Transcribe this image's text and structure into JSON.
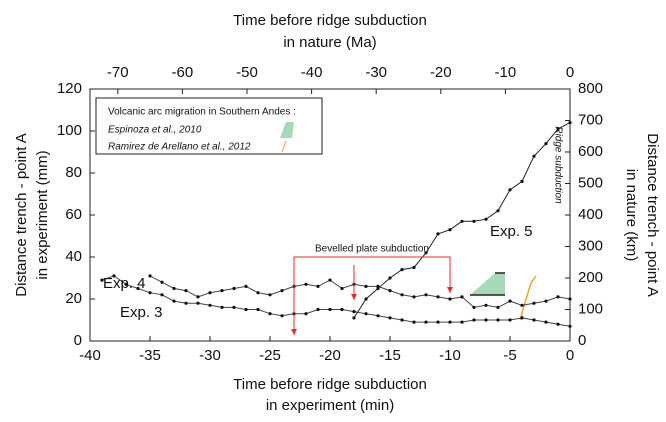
{
  "chart_data": {
    "type": "line",
    "x_label": [
      "Time before ridge subduction",
      "in experiment (min)"
    ],
    "x2_label": [
      "Time before ridge subduction",
      "in nature (Ma)"
    ],
    "y_label": [
      "Distance trench - point A",
      "in experiment (mm)"
    ],
    "y2_label": [
      "Distance trench - point A",
      "in nature (km)"
    ],
    "xlim": [
      -40,
      0
    ],
    "xticks": [
      -40,
      -35,
      -30,
      -25,
      -20,
      -15,
      -10,
      -5,
      0
    ],
    "x2lim": [
      -74.3,
      0
    ],
    "x2ticks": [
      -70,
      -60,
      -50,
      -40,
      -30,
      -20,
      -10,
      0
    ],
    "ylim": [
      0,
      120
    ],
    "yticks": [
      0,
      20,
      40,
      60,
      80,
      100,
      120
    ],
    "y2lim": [
      0,
      800
    ],
    "y2ticks": [
      0,
      100,
      200,
      300,
      400,
      500,
      600,
      700,
      800
    ],
    "series": [
      {
        "name": "Exp. 4",
        "color": "#444444",
        "x": [
          -35,
          -34,
          -33,
          -32,
          -31,
          -30,
          -29,
          -28,
          -27,
          -26,
          -25,
          -24,
          -23,
          -22,
          -21,
          -20,
          -19,
          -18,
          -17,
          -16,
          -15,
          -14,
          -13,
          -12,
          -11,
          -10,
          -9,
          -8,
          -7,
          -6,
          -5,
          -4,
          -3,
          -2,
          -1,
          0
        ],
        "values": [
          31,
          28,
          25,
          24,
          21,
          23,
          24,
          25,
          26,
          23,
          22,
          24,
          26,
          27,
          26,
          29,
          25,
          27,
          26,
          26,
          24,
          22,
          21,
          22,
          21,
          20,
          21,
          16,
          17,
          16,
          19,
          17,
          18,
          19,
          21,
          20
        ]
      },
      {
        "name": "Exp. 3",
        "color": "#444444",
        "x": [
          -39,
          -38,
          -37,
          -36,
          -35,
          -34,
          -33,
          -32,
          -31,
          -30,
          -29,
          -28,
          -27,
          -26,
          -25,
          -24,
          -23,
          -22,
          -21,
          -20,
          -19,
          -18,
          -17,
          -16,
          -15,
          -14,
          -13,
          -12,
          -11,
          -10,
          -9,
          -8,
          -7,
          -6,
          -5,
          -4,
          -3,
          -2,
          -1,
          0
        ],
        "values": [
          29,
          31,
          27,
          25,
          23,
          22,
          19,
          18,
          18,
          17,
          16,
          16,
          15,
          15,
          13,
          12,
          13,
          13,
          15,
          15,
          15,
          14,
          13,
          12,
          11,
          10,
          9,
          9,
          9,
          9,
          9,
          10,
          10,
          10,
          10,
          11,
          10,
          9,
          8,
          7
        ]
      },
      {
        "name": "Exp. 5",
        "color": "#222222",
        "x": [
          -18,
          -17,
          -16,
          -15,
          -14,
          -13,
          -12,
          -11,
          -10,
          -9,
          -8,
          -7,
          -6,
          -5,
          -4,
          -3,
          -2,
          -1,
          0
        ],
        "values": [
          11,
          20,
          25,
          30,
          34,
          35,
          42,
          51,
          53,
          57,
          57,
          58,
          62,
          72,
          76,
          88,
          94,
          101,
          104
        ]
      }
    ],
    "legend": {
      "title": "Volcanic arc migration in Southern Andes :",
      "entries": [
        {
          "text": "Espinoza et al., 2010",
          "color": "#3aaa6a"
        },
        {
          "text": "Ramirez de Arellano et al., 2012",
          "color": "#f0a030"
        }
      ]
    },
    "bevelled": {
      "text": "Bevelled plate subduction",
      "color": "#e03030",
      "x": [
        -23,
        -18,
        -10
      ]
    },
    "ridge_text": "Ridge subduction"
  }
}
